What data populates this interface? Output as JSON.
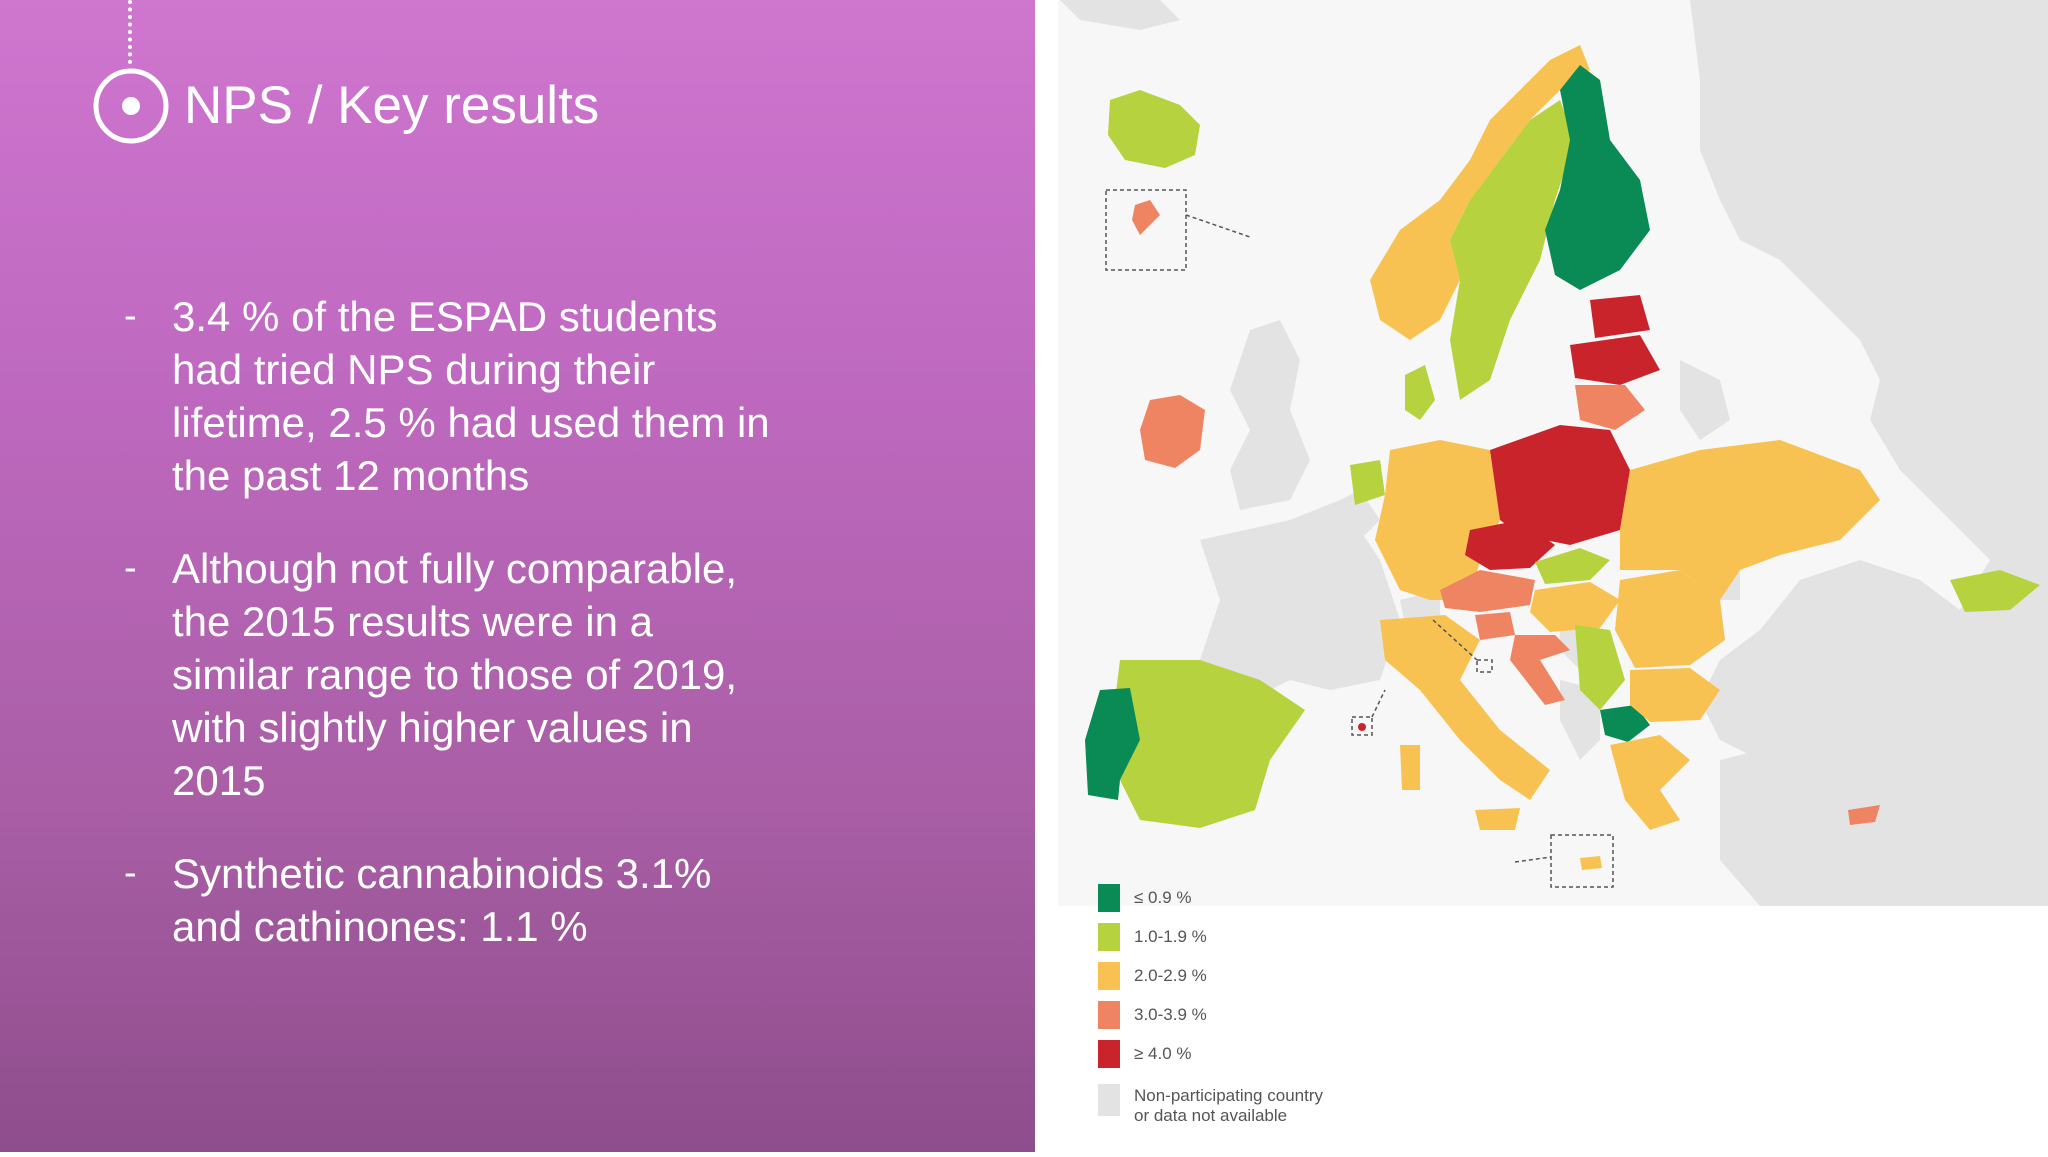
{
  "slide": {
    "title": "NPS / Key results",
    "bullets": [
      {
        "dash": "-",
        "text": "3.4 % of the ESPAD students had tried NPS during their lifetime, 2.5 % had used them in the past 12 months"
      },
      {
        "dash": "-",
        "text": "Although not fully comparable, the 2015 results were in a similar range to those of 2019, with slightly higher values in 2015"
      },
      {
        "dash": "-",
        "text": "Synthetic cannabinoids 3.1% and cathinones: 1.1 %"
      }
    ]
  },
  "map": {
    "legend": [
      {
        "label": "≤ 0.9 %",
        "color": "#0a8a55"
      },
      {
        "label": "1.0-1.9 %",
        "color": "#b6d23f"
      },
      {
        "label": "2.0-2.9 %",
        "color": "#f8c252"
      },
      {
        "label": "3.0-3.9 %",
        "color": "#ee8462"
      },
      {
        "label": "≥ 4.0 %",
        "color": "#c9242c"
      },
      {
        "label": "Non-participating country or data not available",
        "label_line1": "Non-participating country",
        "label_line2": "or data not available",
        "color": "#e3e3e3"
      }
    ],
    "countries": [
      {
        "name": "Finland",
        "category": "≤ 0.9 %"
      },
      {
        "name": "Portugal",
        "category": "≤ 0.9 %"
      },
      {
        "name": "North Macedonia",
        "category": "≤ 0.9 %"
      },
      {
        "name": "Iceland",
        "category": "1.0-1.9 %"
      },
      {
        "name": "Sweden",
        "category": "1.0-1.9 %"
      },
      {
        "name": "Denmark",
        "category": "1.0-1.9 %"
      },
      {
        "name": "Netherlands",
        "category": "1.0-1.9 %"
      },
      {
        "name": "Spain",
        "category": "1.0-1.9 %"
      },
      {
        "name": "Slovakia",
        "category": "1.0-1.9 %"
      },
      {
        "name": "Serbia",
        "category": "1.0-1.9 %"
      },
      {
        "name": "Georgia",
        "category": "1.0-1.9 %"
      },
      {
        "name": "Norway",
        "category": "2.0-2.9 %"
      },
      {
        "name": "Germany",
        "category": "2.0-2.9 %"
      },
      {
        "name": "Ukraine",
        "category": "2.0-2.9 %"
      },
      {
        "name": "Hungary",
        "category": "2.0-2.9 %"
      },
      {
        "name": "Romania",
        "category": "2.0-2.9 %"
      },
      {
        "name": "Bulgaria",
        "category": "2.0-2.9 %"
      },
      {
        "name": "Italy",
        "category": "2.0-2.9 %"
      },
      {
        "name": "Greece",
        "category": "2.0-2.9 %"
      },
      {
        "name": "Ireland",
        "category": "3.0-3.9 %"
      },
      {
        "name": "Lithuania",
        "category": "3.0-3.9 %"
      },
      {
        "name": "Austria",
        "category": "3.0-3.9 %"
      },
      {
        "name": "Slovenia",
        "category": "3.0-3.9 %"
      },
      {
        "name": "Croatia",
        "category": "3.0-3.9 %"
      },
      {
        "name": "Cyprus",
        "category": "3.0-3.9 %"
      },
      {
        "name": "Faroe Islands",
        "category": "3.0-3.9 %"
      },
      {
        "name": "Poland",
        "category": "≥ 4.0 %"
      },
      {
        "name": "Czechia",
        "category": "≥ 4.0 %"
      },
      {
        "name": "Latvia",
        "category": "≥ 4.0 %"
      },
      {
        "name": "Estonia",
        "category": "≥ 4.0 %"
      }
    ]
  }
}
